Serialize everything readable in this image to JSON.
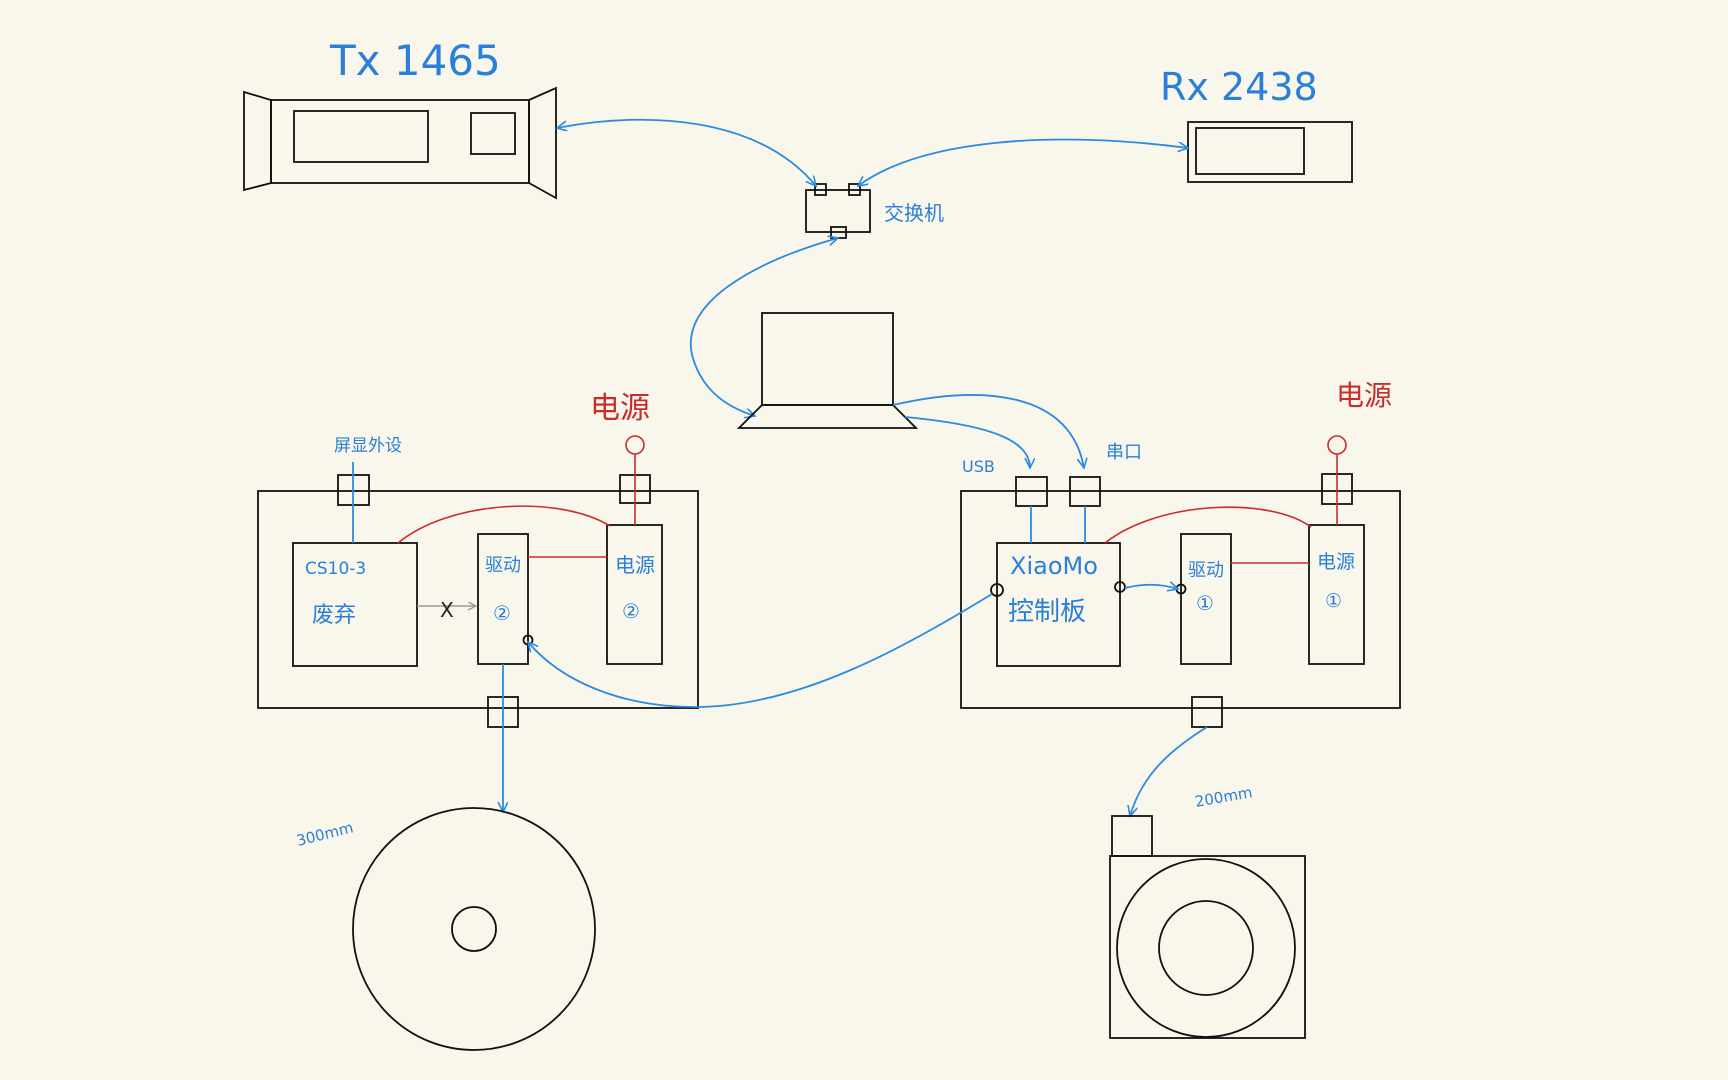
{
  "labels": {
    "tx": "Tx 1465",
    "rx": "Rx 2438",
    "switch": "交换机",
    "screen": "屏显外设",
    "power_left_top": "电源",
    "power_right_top": "电源",
    "cs_line1": "CS10-3",
    "cs_line2": "废弃",
    "cross_mark": "X",
    "drive_left": "驱动",
    "drive_left_num": "②",
    "power_left_box": "电源",
    "power_left_num": "②",
    "usb": "USB",
    "serial": "串口",
    "xiaomo_line1": "XiaoMo",
    "xiaomo_line2": "控制板",
    "drive_right": "驱动",
    "drive_right_num": "①",
    "power_right_box": "电源",
    "power_right_num": "①",
    "disc_size": "300mm",
    "motor_size": "200mm"
  },
  "colors": {
    "background": "#f9f7eb",
    "stroke": "#111111",
    "blue": "#2a80d8",
    "red": "#cc2b2b"
  }
}
